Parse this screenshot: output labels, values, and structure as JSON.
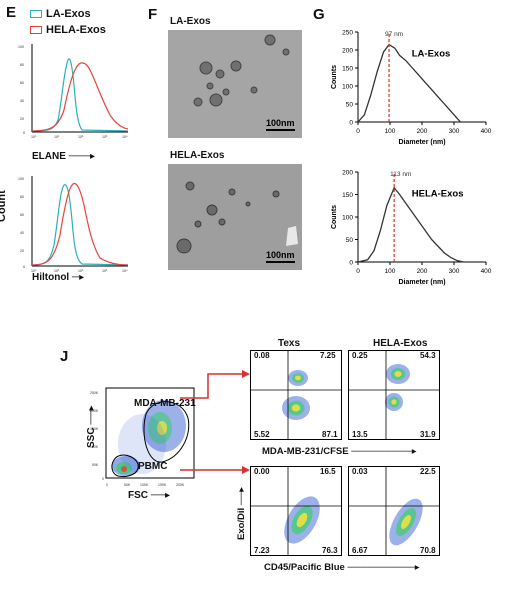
{
  "panels": {
    "E": "E",
    "F": "F",
    "G": "G",
    "J": "J"
  },
  "legend": {
    "items": [
      {
        "label": "LA-Exos",
        "color": "#2ab0b8"
      },
      {
        "label": "HELA-Exos",
        "color": "#e8413c"
      }
    ]
  },
  "histograms": {
    "ylabel": "Count",
    "markers": [
      {
        "label": "ELANE",
        "ticks": [
          "10⁰",
          "10¹",
          "10²",
          "10³",
          "10⁴"
        ]
      },
      {
        "label": "Hiltonol",
        "ticks": [
          "10⁰",
          "10¹",
          "10²",
          "10³",
          "10⁴"
        ]
      }
    ],
    "yticks": [
      "100",
      "80",
      "60",
      "40",
      "20",
      "0"
    ]
  },
  "tem": {
    "top_title": "LA-Exos",
    "bottom_title": "HELA-Exos",
    "scale_label": "100nm"
  },
  "chart_data": [
    {
      "type": "line",
      "title": "LA-Exos",
      "xlabel": "Diameter (nm)",
      "ylabel": "Counts",
      "xlim": [
        0,
        400
      ],
      "ylim": [
        0,
        250
      ],
      "xticks": [
        0,
        100,
        200,
        300,
        400
      ],
      "yticks": [
        0,
        50,
        100,
        150,
        200,
        250
      ],
      "peak_label": "97 nm",
      "peak_x": 97,
      "x": [
        0,
        20,
        40,
        60,
        80,
        97,
        115,
        130,
        150,
        170,
        190,
        210,
        230,
        250,
        270,
        290,
        310,
        320
      ],
      "y": [
        0,
        20,
        75,
        140,
        195,
        215,
        205,
        185,
        170,
        150,
        130,
        110,
        90,
        70,
        50,
        30,
        10,
        0
      ]
    },
    {
      "type": "line",
      "title": "HELA-Exos",
      "xlabel": "Diameter (nm)",
      "ylabel": "Counts",
      "xlim": [
        0,
        400
      ],
      "ylim": [
        0,
        200
      ],
      "xticks": [
        0,
        100,
        200,
        300,
        400
      ],
      "yticks": [
        0,
        50,
        100,
        150,
        200
      ],
      "peak_label": "113 nm",
      "peak_x": 113,
      "x": [
        0,
        30,
        50,
        70,
        90,
        113,
        130,
        150,
        170,
        190,
        210,
        230,
        250,
        270,
        290,
        310,
        330
      ],
      "y": [
        0,
        5,
        25,
        70,
        125,
        165,
        150,
        130,
        110,
        90,
        70,
        50,
        35,
        20,
        10,
        3,
        0
      ]
    }
  ],
  "gating": {
    "population_upper": "MDA-MB-231",
    "population_lower": "PBMC",
    "xlabel": "FSC",
    "ylabel": "SSC"
  },
  "flow": {
    "col_titles": [
      "Texs",
      "HELA-Exos"
    ],
    "row1_xlabel": "MDA-MB-231/CFSE",
    "row2_xlabel": "CD45/Pacific Blue",
    "ylabel": "Exo/DiI",
    "plots": [
      {
        "ul": "0.08",
        "ur": "7.25",
        "ll": "5.52",
        "lr": "87.1"
      },
      {
        "ul": "0.25",
        "ur": "54.3",
        "ll": "13.5",
        "lr": "31.9"
      },
      {
        "ul": "0.00",
        "ur": "16.5",
        "ll": "7.23",
        "lr": "76.3"
      },
      {
        "ul": "0.03",
        "ur": "22.5",
        "ll": "6.67",
        "lr": "70.8"
      }
    ]
  }
}
